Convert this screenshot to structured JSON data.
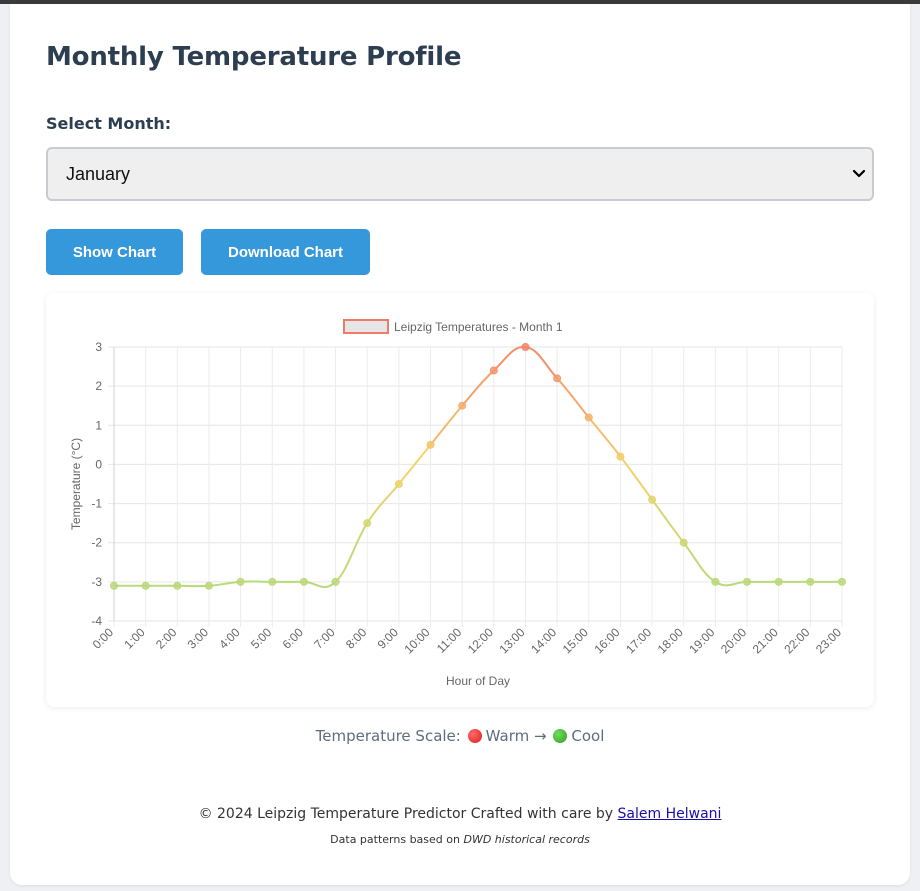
{
  "page": {
    "title": "Monthly Temperature Profile",
    "select_label": "Select Month:",
    "select_value": "January"
  },
  "buttons": {
    "show": "Show Chart",
    "download": "Download Chart"
  },
  "chart_data": {
    "type": "line",
    "legend": "Leipzig Temperatures - Month 1",
    "x": [
      "0:00",
      "1:00",
      "2:00",
      "3:00",
      "4:00",
      "5:00",
      "6:00",
      "7:00",
      "8:00",
      "9:00",
      "10:00",
      "11:00",
      "12:00",
      "13:00",
      "14:00",
      "15:00",
      "16:00",
      "17:00",
      "18:00",
      "19:00",
      "20:00",
      "21:00",
      "22:00",
      "23:00"
    ],
    "values": [
      -3.1,
      -3.1,
      -3.1,
      -3.1,
      -3.0,
      -3.0,
      -3.0,
      -3.0,
      -1.5,
      -0.5,
      0.5,
      1.5,
      2.4,
      3.0,
      2.2,
      1.2,
      0.2,
      -0.9,
      -2.0,
      -3.0,
      -3.0,
      -3.0,
      -3.0,
      -3.0
    ],
    "xlabel": "Hour of Day",
    "ylabel": "Temperature (°C)",
    "ylim": [
      -4,
      3
    ],
    "yticks": [
      3,
      2,
      1,
      0,
      -1,
      -2,
      -3,
      -4
    ],
    "grid": true,
    "legend_position": "top",
    "colors": {
      "warm": "#f4866b",
      "mid": "#f3d36a",
      "cool": "#b9d97a"
    }
  },
  "scale": {
    "prefix": "Temperature Scale:",
    "warm": "Warm",
    "arrow": "→",
    "cool": "Cool"
  },
  "footer": {
    "line1_prefix": "© 2024 Leipzig Temperature Predictor Crafted with care by",
    "author": "Salem Helwani",
    "line2_prefix": "Data patterns based on",
    "source": "DWD historical records"
  }
}
